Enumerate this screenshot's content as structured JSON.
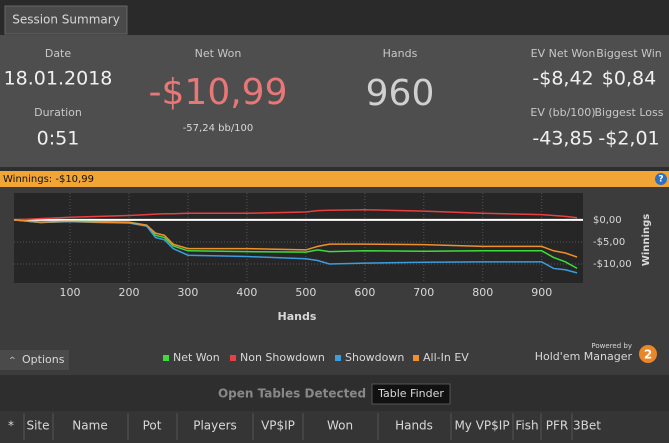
{
  "header": {
    "tab": "Session Summary"
  },
  "summary": {
    "date_label": "Date",
    "date": "18.01.2018",
    "duration_label": "Duration",
    "duration": "0:51",
    "net_won_label": "Net Won",
    "net_won": "-$10,99",
    "net_won_bb": "-57,24 bb/100",
    "hands_label": "Hands",
    "hands": "960",
    "ev_net_won_label": "EV Net Won",
    "ev_net_won": "-$8,42",
    "biggest_win_label": "Biggest Win",
    "biggest_win": "$0,84",
    "ev_bb_label": "EV (bb/100)",
    "ev_bb": "-43,85",
    "biggest_loss_label": "Biggest Loss",
    "biggest_loss": "-$2,01"
  },
  "status": "Winnings: -$10,99",
  "help": "?",
  "chart_data": {
    "type": "line",
    "xlabel": "Hands",
    "ylabel": "Winnings",
    "x": [
      5,
      50,
      100,
      150,
      200,
      230,
      245,
      260,
      275,
      300,
      400,
      500,
      520,
      540,
      600,
      700,
      800,
      900,
      920,
      940,
      960
    ],
    "xlim": [
      5,
      970
    ],
    "xticks": [
      100,
      200,
      300,
      400,
      500,
      600,
      700,
      800,
      900
    ],
    "ylim": [
      -14.3,
      6.1
    ],
    "yticks": [
      {
        "value": 0,
        "label": "$0,00"
      },
      {
        "value": -5,
        "label": "-$5,00"
      },
      {
        "value": -10,
        "label": "-$10,00"
      }
    ],
    "grid": true,
    "series": [
      {
        "name": "Net Won",
        "color": "#3ddc3d",
        "values": [
          0,
          -0.6,
          -0.3,
          -0.4,
          -0.5,
          -1.2,
          -3.5,
          -4.0,
          -5.9,
          -7.0,
          -7.2,
          -7.3,
          -6.8,
          -7.2,
          -7.0,
          -7.1,
          -7.0,
          -7.0,
          -8.5,
          -9.5,
          -10.99
        ]
      },
      {
        "name": "Non Showdown",
        "color": "#e84040",
        "values": [
          0,
          0.3,
          0.6,
          0.8,
          1.0,
          1.2,
          1.3,
          1.4,
          1.4,
          1.5,
          1.5,
          1.8,
          2.1,
          2.2,
          2.3,
          2.0,
          1.5,
          1.2,
          1.0,
          0.8,
          0.5
        ]
      },
      {
        "name": "Showdown",
        "color": "#3b9de0",
        "values": [
          0,
          -0.6,
          -0.4,
          -0.6,
          -0.7,
          -1.4,
          -4.0,
          -4.5,
          -6.5,
          -8.0,
          -8.3,
          -8.8,
          -9.2,
          -10.0,
          -9.8,
          -9.6,
          -9.5,
          -9.5,
          -11.0,
          -11.3,
          -12.0
        ]
      },
      {
        "name": "All-In EV",
        "color": "#f0902a",
        "values": [
          0,
          -0.5,
          -0.3,
          -0.5,
          -0.6,
          -1.2,
          -3.0,
          -3.5,
          -5.5,
          -6.5,
          -6.5,
          -6.8,
          -6.0,
          -5.5,
          -5.5,
          -5.6,
          -6.0,
          -6.0,
          -7.0,
          -7.5,
          -8.42
        ]
      }
    ]
  },
  "footer": {
    "options": "Options",
    "powered_by": "Powered by",
    "brand": "Hold'em Manager",
    "badge": "2"
  },
  "tables": {
    "title": "Open Tables Detected",
    "button": "Table Finder",
    "columns": [
      "*",
      "Site",
      "Name",
      "Pot",
      "Players",
      "VP$IP",
      "Won",
      "Hands",
      "My VP$IP",
      "Fish",
      "PFR",
      "3Bet"
    ]
  }
}
